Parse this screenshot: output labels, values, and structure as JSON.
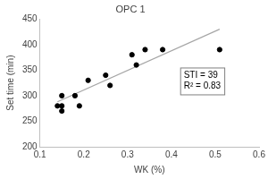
{
  "chart_data": {
    "type": "scatter",
    "title": "OPC 1",
    "x_label": "WK (%)",
    "y_label": "Set time (min)",
    "xlim": [
      0.1,
      0.6
    ],
    "xticks": [
      0.1,
      0.2,
      0.3,
      0.4,
      0.5,
      0.6
    ],
    "ylim": [
      200,
      450
    ],
    "yticks": [
      200,
      250,
      300,
      350,
      400,
      450
    ],
    "grid": false,
    "annotations": [
      "STI = 39",
      "R² = 0.83"
    ],
    "series": [
      {
        "type": "scatter",
        "color": "#000000",
        "marker": "circle",
        "x": [
          0.14,
          0.15,
          0.15,
          0.15,
          0.18,
          0.19,
          0.21,
          0.25,
          0.26,
          0.31,
          0.32,
          0.34,
          0.38,
          0.51
        ],
        "values": [
          280,
          280,
          270,
          300,
          300,
          280,
          330,
          340,
          320,
          380,
          360,
          390,
          390,
          390
        ]
      },
      {
        "type": "line",
        "color": "#a6a6a6",
        "line_style": "solid",
        "x": [
          0.14,
          0.51
        ],
        "values": [
          288,
          430
        ]
      }
    ]
  }
}
